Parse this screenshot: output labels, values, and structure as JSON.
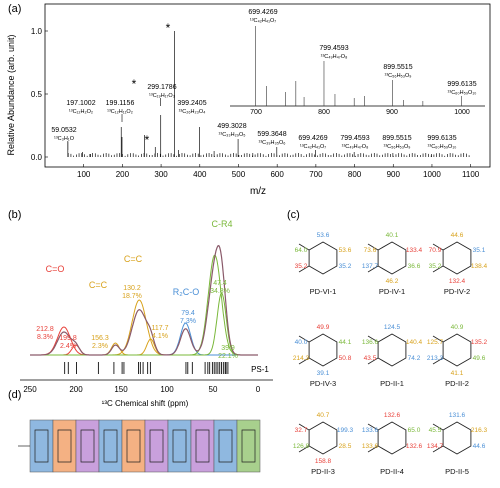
{
  "panel_a": {
    "label": "(a)",
    "ylabel": "Relative Abundance (arb. unit)",
    "xlabel": "m/z",
    "x_ticks": [
      "100",
      "200",
      "300",
      "400",
      "500",
      "600",
      "700",
      "800",
      "900",
      "1000",
      "1100"
    ],
    "y_ticks": [
      "0.0",
      "0.5",
      "1.0"
    ],
    "inset_x_ticks": [
      "700",
      "800",
      "900",
      "1000"
    ],
    "peaks": [
      {
        "mass": "59.0532",
        "formula": "¹³C₃H₁O"
      },
      {
        "mass": "197.1002",
        "formula": "¹³C₁₂H₂O₂"
      },
      {
        "mass": "199.1156",
        "formula": "¹³C₁₂H₁₁O₂"
      },
      {
        "mass": "299.1786",
        "formula": "¹³C₁₉H₁₇O₃"
      },
      {
        "mass": "399.2405",
        "formula": "¹³C₂₆H₂₃O₄"
      },
      {
        "mass": "499.3028",
        "formula": "¹³C₃₃H₂₉O₅"
      },
      {
        "mass": "599.3648",
        "formula": "¹³C₃₉H₃₅O₆"
      },
      {
        "mass": "699.4269",
        "formula": "¹³C₄₂H₄₁O₇"
      },
      {
        "mass": "799.4593",
        "formula": "¹³C₄₉H₄₇O₈"
      },
      {
        "mass": "899.5515",
        "formula": "¹³C₅₆H₅₃O₉"
      },
      {
        "mass": "999.6135",
        "formula": "¹³C₆₀H₅₉O₁₀"
      }
    ],
    "inset_peaks": [
      {
        "mass": "699.4269",
        "formula": "¹³C₄₂H₄₁O₇"
      },
      {
        "mass": "799.4593",
        "formula": "¹³C₄₉H₄₇O₈"
      },
      {
        "mass": "899.5515",
        "formula": "¹³C₅₆H₅₃O₉"
      },
      {
        "mass": "999.6135",
        "formula": "¹³C₆₀H₅₉O₁₀"
      }
    ],
    "star": "*"
  },
  "panel_b": {
    "label": "(b)",
    "xlabel": "¹³C Chemical shift (ppm)",
    "x_ticks": [
      "250",
      "200",
      "150",
      "100",
      "50",
      "0"
    ],
    "ps_label": "PS-1",
    "groups": [
      {
        "name": "C=O",
        "color": "#e8413a"
      },
      {
        "name": "C=C",
        "color": "#d8a21c"
      },
      {
        "name": "C=C",
        "color": "#d8a21c"
      },
      {
        "name": "R₂C-O",
        "color": "#4a8fd6"
      },
      {
        "name": "C-R4",
        "color": "#7ab83a"
      }
    ],
    "peak_labels": [
      {
        "ppm": "212.8",
        "pct": "8.3%",
        "color": "#e8413a"
      },
      {
        "ppm": "199.8",
        "pct": "2.4%",
        "color": "#e8413a"
      },
      {
        "ppm": "156.3",
        "pct": "2.3%",
        "color": "#d8a21c"
      },
      {
        "ppm": "130.2",
        "pct": "18.7%",
        "color": "#d8a21c"
      },
      {
        "ppm": "117.7",
        "pct": "4.1%",
        "color": "#d8a21c"
      },
      {
        "ppm": "79.4",
        "pct": "7.3%",
        "color": "#4a8fd6"
      },
      {
        "ppm": "47.4",
        "pct": "34.8%",
        "color": "#7ab83a"
      },
      {
        "ppm": "39.9",
        "pct": "22.1%",
        "color": "#7ab83a"
      }
    ]
  },
  "panel_c": {
    "label": "(c)",
    "structures": [
      {
        "name": "PD-VI-1",
        "shifts": [
          "53.6",
          "64.0",
          "53.6",
          "35.2",
          "35.2"
        ]
      },
      {
        "name": "PD-IV-1",
        "shifts": [
          "40.1",
          "73.6",
          "133.4",
          "137.7",
          "36.6",
          "46.2"
        ]
      },
      {
        "name": "PD-IV-2",
        "shifts": [
          "44.6",
          "70.9",
          "35.1",
          "35.2",
          "138.4",
          "132.4"
        ]
      },
      {
        "name": "PD-IV-3",
        "shifts": [
          "49.9",
          "40.0",
          "44.1",
          "214.3",
          "50.8",
          "39.1"
        ]
      },
      {
        "name": "PD-II-1",
        "shifts": [
          "124.5",
          "136.6",
          "140.4",
          "43.5",
          "74.2"
        ]
      },
      {
        "name": "PD-II-2",
        "shifts": [
          "40.9",
          "125.7",
          "135.2",
          "213.3",
          "49.6",
          "41.1"
        ]
      },
      {
        "name": "PD-II-3",
        "shifts": [
          "40.7",
          "32.7",
          "199.3",
          "126.8",
          "28.5",
          "158.8"
        ]
      },
      {
        "name": "PD-II-4",
        "shifts": [
          "132.6",
          "133.6",
          "65.0",
          "133.6",
          "132.6"
        ]
      },
      {
        "name": "PD-II-5",
        "shifts": [
          "131.6",
          "45.5",
          "216.3",
          "134.7",
          "44.6"
        ]
      }
    ]
  },
  "panel_d": {
    "label": "(d)"
  }
}
